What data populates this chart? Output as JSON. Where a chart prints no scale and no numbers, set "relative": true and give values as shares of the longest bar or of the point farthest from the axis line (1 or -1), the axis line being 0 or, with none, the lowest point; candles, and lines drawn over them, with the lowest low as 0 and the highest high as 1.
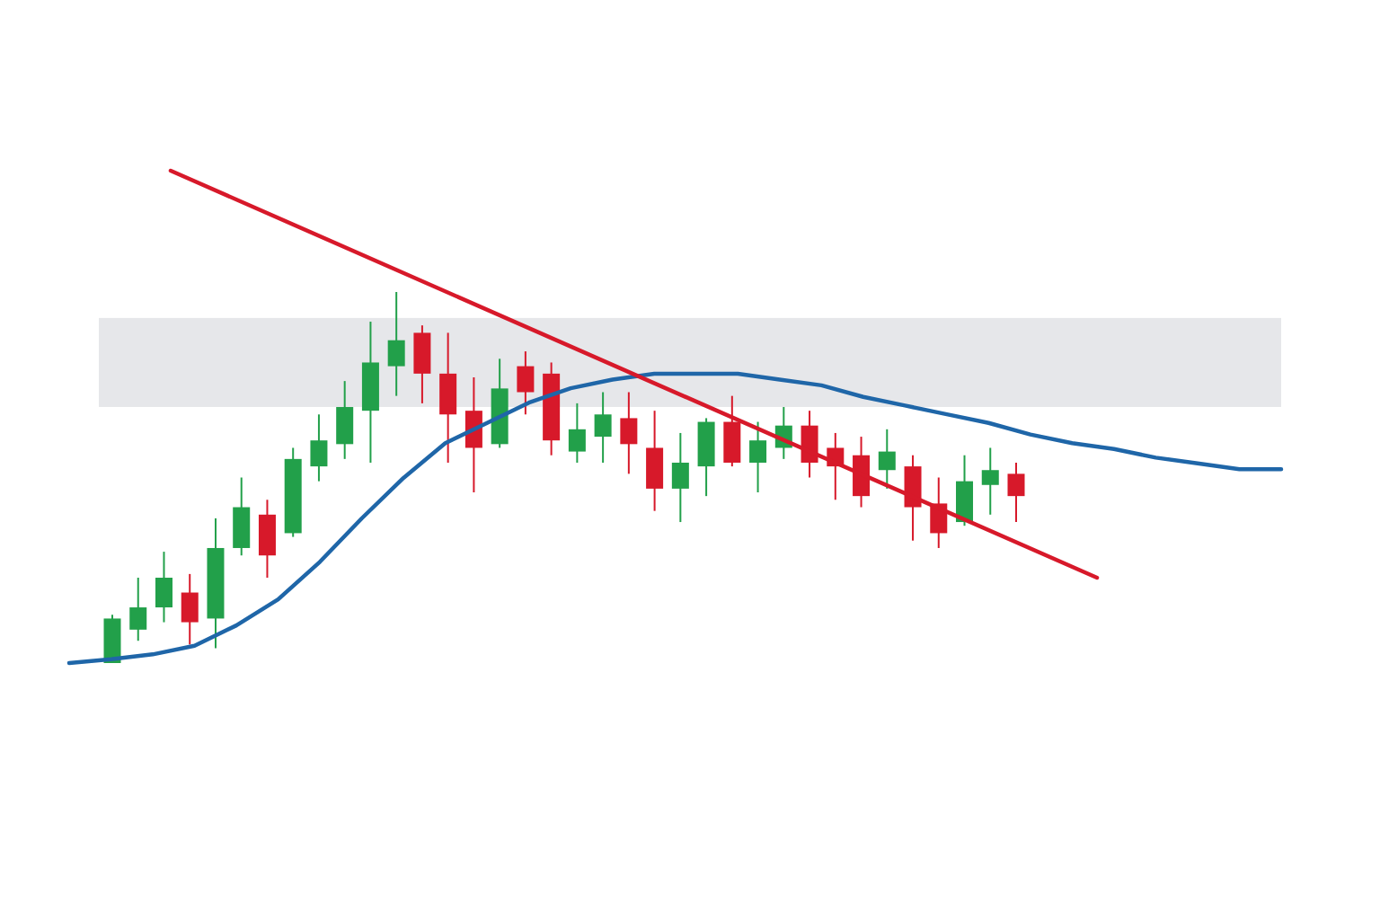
{
  "chart_data": [
    {
      "type": "candlestick",
      "relative": true,
      "categories": [
        null,
        null,
        null,
        null,
        null,
        null,
        null,
        null,
        null,
        null,
        null,
        null,
        null,
        null,
        null,
        null,
        null,
        null,
        null,
        null,
        null,
        null,
        null,
        null,
        null,
        null,
        null,
        null,
        null,
        null,
        null,
        null,
        null,
        null,
        null,
        null
      ],
      "ohlc": [
        [
          0.0,
          0.13,
          0.0,
          0.12
        ],
        [
          0.09,
          0.23,
          0.06,
          0.15
        ],
        [
          0.15,
          0.3,
          0.11,
          0.23
        ],
        [
          0.19,
          0.24,
          0.05,
          0.11
        ],
        [
          0.12,
          0.39,
          0.04,
          0.31
        ],
        [
          0.31,
          0.5,
          0.29,
          0.42
        ],
        [
          0.4,
          0.44,
          0.23,
          0.29
        ],
        [
          0.35,
          0.58,
          0.34,
          0.55
        ],
        [
          0.53,
          0.67,
          0.49,
          0.6
        ],
        [
          0.59,
          0.76,
          0.55,
          0.69
        ],
        [
          0.68,
          0.92,
          0.54,
          0.81
        ],
        [
          0.8,
          1.0,
          0.72,
          0.87
        ],
        [
          0.89,
          0.91,
          0.7,
          0.78
        ],
        [
          0.78,
          0.89,
          0.54,
          0.67
        ],
        [
          0.68,
          0.77,
          0.46,
          0.58
        ],
        [
          0.59,
          0.82,
          0.58,
          0.74
        ],
        [
          0.8,
          0.84,
          0.67,
          0.73
        ],
        [
          0.78,
          0.81,
          0.56,
          0.6
        ],
        [
          0.57,
          0.7,
          0.54,
          0.63
        ],
        [
          0.61,
          0.73,
          0.54,
          0.67
        ],
        [
          0.66,
          0.73,
          0.51,
          0.59
        ],
        [
          0.58,
          0.68,
          0.41,
          0.47
        ],
        [
          0.47,
          0.62,
          0.38,
          0.54
        ],
        [
          0.53,
          0.66,
          0.45,
          0.65
        ],
        [
          0.65,
          0.72,
          0.53,
          0.54
        ],
        [
          0.54,
          0.65,
          0.46,
          0.6
        ],
        [
          0.58,
          0.69,
          0.55,
          0.64
        ],
        [
          0.64,
          0.68,
          0.5,
          0.54
        ],
        [
          0.58,
          0.62,
          0.44,
          0.53
        ],
        [
          0.56,
          0.61,
          0.42,
          0.45
        ],
        [
          0.52,
          0.63,
          0.47,
          0.57
        ],
        [
          0.53,
          0.56,
          0.33,
          0.42
        ],
        [
          0.43,
          0.5,
          0.31,
          0.35
        ],
        [
          0.38,
          0.56,
          0.37,
          0.49
        ],
        [
          0.48,
          0.58,
          0.4,
          0.52
        ],
        [
          0.51,
          0.54,
          0.38,
          0.45
        ]
      ],
      "colors": [
        "#22a04a",
        "#22a04a",
        "#22a04a",
        "#d7192a",
        "#22a04a",
        "#22a04a",
        "#d7192a",
        "#22a04a",
        "#22a04a",
        "#22a04a",
        "#22a04a",
        "#22a04a",
        "#d7192a",
        "#d7192a",
        "#d7192a",
        "#22a04a",
        "#d7192a",
        "#d7192a",
        "#22a04a",
        "#22a04a",
        "#d7192a",
        "#d7192a",
        "#22a04a",
        "#22a04a",
        "#d7192a",
        "#22a04a",
        "#22a04a",
        "#d7192a",
        "#d7192a",
        "#d7192a",
        "#22a04a",
        "#d7192a",
        "#d7192a",
        "#22a04a",
        "#22a04a",
        "#d7192a"
      ],
      "bands": [
        {
          "axis": "y",
          "from": 0.69,
          "to": 0.93,
          "color": "#e6e7ea"
        }
      ]
    },
    {
      "type": "line",
      "relative": true,
      "categories": [
        null,
        null,
        null,
        null,
        null,
        null,
        null,
        null,
        null,
        null,
        null,
        null,
        null,
        null,
        null,
        null,
        null,
        null,
        null,
        null,
        null,
        null,
        null,
        null,
        null,
        null,
        null,
        null,
        null,
        null
      ],
      "series": [
        {
          "color": "#1f66a8",
          "values": [
            0,
            0.013,
            0.03,
            0.06,
            0.13,
            0.22,
            0.35,
            0.5,
            0.64,
            0.76,
            0.83,
            0.9,
            0.95,
            0.98,
            1,
            1,
            1,
            0.98,
            0.96,
            0.92,
            0.89,
            0.86,
            0.83,
            0.79,
            0.76,
            0.74,
            0.71,
            0.69,
            0.67,
            0.67
          ]
        }
      ]
    },
    {
      "type": "line",
      "relative": true,
      "categories": [
        null,
        null
      ],
      "series": [
        {
          "color": "#d7192a",
          "values": [
            1,
            0
          ]
        }
      ]
    }
  ]
}
